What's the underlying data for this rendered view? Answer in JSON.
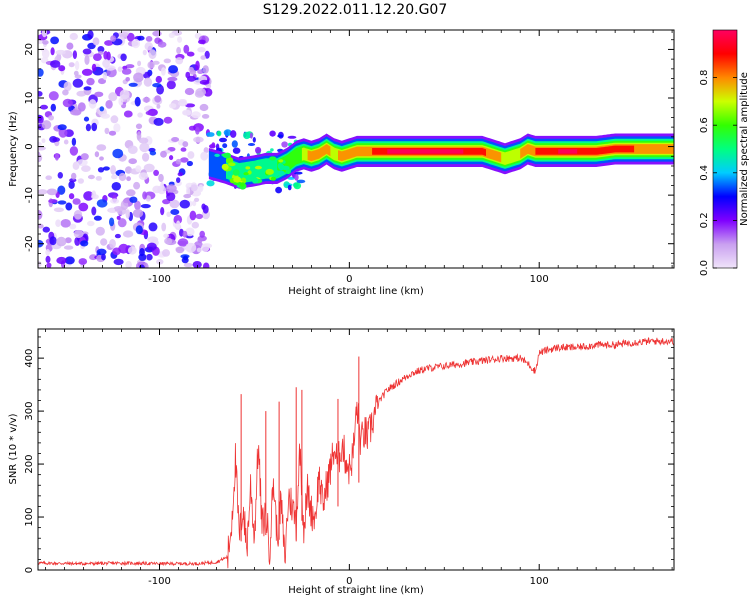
{
  "title": "S129.2022.011.12.20.G07",
  "chart_data": [
    {
      "type": "heatmap",
      "xlabel": "Height of straight line (km)",
      "ylabel": "Frequency (Hz)",
      "xlim": [
        -164,
        171
      ],
      "ylim": [
        -25,
        24
      ],
      "xticks": [
        -100,
        0,
        100
      ],
      "yticks": [
        -20,
        -10,
        0,
        10,
        20
      ],
      "colorbar": {
        "label": "Normalized spectral amplitude",
        "range": [
          0,
          1
        ],
        "ticks": [
          0.0,
          0.2,
          0.4,
          0.6,
          0.8
        ],
        "colors": [
          "#f0e4fa",
          "#c9a0f0",
          "#7f00ff",
          "#0000ff",
          "#00ccff",
          "#00ff80",
          "#33ff00",
          "#ccff00",
          "#ff8800",
          "#ff0000",
          "#ff0060"
        ]
      },
      "noise_region": {
        "x": [
          -164,
          -74
        ],
        "y": [
          -25,
          24
        ]
      },
      "ridge": {
        "x": [
          -74,
          -65,
          -58,
          -50,
          -44,
          -38,
          -33,
          -28,
          -24,
          -20,
          -16,
          -12,
          -8,
          -4,
          0,
          4,
          8,
          12,
          16,
          20,
          30,
          40,
          50,
          60,
          70,
          74,
          78,
          82,
          86,
          90,
          94,
          98,
          104,
          110,
          120,
          130,
          140,
          150,
          160,
          171
        ],
        "y": [
          -3.5,
          -4.5,
          -5.5,
          -5,
          -4.5,
          -4.5,
          -3.5,
          -2,
          -1.5,
          -2,
          -1.5,
          -0.5,
          -1.5,
          -2,
          -1.5,
          -1,
          -1,
          -1,
          -1,
          -1,
          -1,
          -1,
          -1,
          -1,
          -1,
          -1.5,
          -2,
          -2.5,
          -2,
          -1.5,
          -0.5,
          -1,
          -1,
          -1,
          -1,
          -1,
          -0.5,
          -0.5,
          -0.5,
          -0.5
        ],
        "amplitude": [
          0.35,
          0.45,
          0.5,
          0.5,
          0.5,
          0.55,
          0.55,
          0.6,
          0.7,
          0.8,
          0.75,
          0.8,
          0.7,
          0.8,
          0.8,
          0.85,
          0.8,
          0.85,
          0.9,
          0.95,
          0.95,
          0.95,
          0.95,
          0.95,
          0.9,
          0.8,
          0.85,
          0.7,
          0.7,
          0.75,
          0.8,
          0.85,
          0.9,
          0.95,
          0.95,
          0.9,
          0.85,
          0.85,
          0.8,
          0.75
        ]
      }
    },
    {
      "type": "line",
      "xlabel": "Height of straight line (km)",
      "ylabel": "SNR (10 * v/v)",
      "xlim": [
        -164,
        171
      ],
      "ylim": [
        0,
        455
      ],
      "xticks": [
        -100,
        0,
        100
      ],
      "yticks": [
        0,
        100,
        200,
        300,
        400
      ],
      "color": "#ee3333",
      "series": [
        {
          "x": [
            -164,
            -140,
            -120,
            -100,
            -80,
            -70,
            -64,
            -62,
            -60,
            -58,
            -56,
            -54,
            -52,
            -50,
            -48,
            -46,
            -44,
            -42,
            -40,
            -38,
            -36,
            -34,
            -32,
            -30,
            -28,
            -26,
            -24,
            -22,
            -20,
            -18,
            -16,
            -14,
            -12,
            -10,
            -8,
            -6,
            -4,
            -2,
            0,
            2,
            4,
            6,
            8,
            10,
            12,
            14,
            16,
            18,
            20,
            24,
            28,
            32,
            36,
            40,
            50,
            60,
            70,
            80,
            90,
            94,
            98,
            100,
            104,
            110,
            120,
            130,
            140,
            150,
            160,
            171
          ],
          "y": [
            13,
            12,
            13,
            12,
            12,
            15,
            25,
            90,
            210,
            60,
            120,
            40,
            160,
            60,
            240,
            80,
            110,
            40,
            170,
            60,
            130,
            20,
            140,
            120,
            90,
            230,
            80,
            150,
            110,
            100,
            180,
            120,
            160,
            190,
            230,
            200,
            240,
            210,
            190,
            220,
            310,
            240,
            260,
            250,
            280,
            300,
            320,
            330,
            340,
            350,
            360,
            370,
            375,
            380,
            385,
            390,
            395,
            400,
            400,
            390,
            375,
            410,
            415,
            420,
            420,
            425,
            425,
            430,
            432,
            432
          ],
          "spikes": [
            [
              -57,
              332
            ],
            [
              -44,
              300
            ],
            [
              -37,
              318
            ],
            [
              -28,
              345
            ],
            [
              -25,
              340
            ],
            [
              5,
              403
            ],
            [
              -6,
              323
            ]
          ]
        }
      ]
    }
  ]
}
